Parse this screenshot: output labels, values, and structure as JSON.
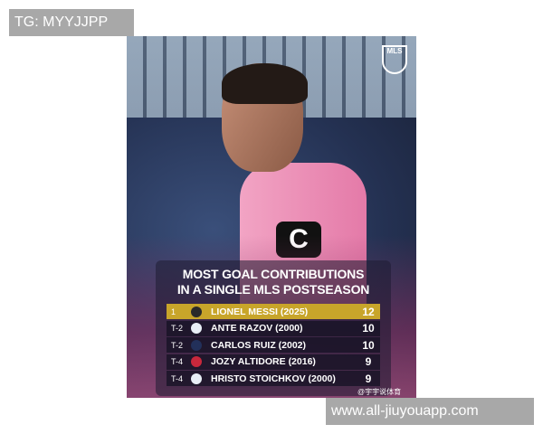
{
  "watermark_top": "TG: MYYJJPP",
  "watermark_bottom": "www.all-jiuyouapp.com",
  "graphic": {
    "logo_text": "MLS",
    "armband": "C",
    "title_line1": "MOST GOAL CONTRIBUTIONS",
    "title_line2": "IN A SINGLE MLS POSTSEASON",
    "rows": [
      {
        "rank": "1",
        "name": "LIONEL MESSI (2025)",
        "value": "12",
        "logo_color": "#2a2a2a"
      },
      {
        "rank": "T-2",
        "name": "ANTE RAZOV (2000)",
        "value": "10",
        "logo_color": "#e8eef6"
      },
      {
        "rank": "T-2",
        "name": "CARLOS RUIZ (2002)",
        "value": "10",
        "logo_color": "#22305a"
      },
      {
        "rank": "T-4",
        "name": "JOZY ALTIDORE (2016)",
        "value": "9",
        "logo_color": "#c8283c"
      },
      {
        "rank": "T-4",
        "name": "HRISTO STOICHKOV (2000)",
        "value": "9",
        "logo_color": "#e8eef6"
      }
    ],
    "highlight_color": "#c8a52a"
  },
  "weibo_credit": "@宇宇说体育"
}
